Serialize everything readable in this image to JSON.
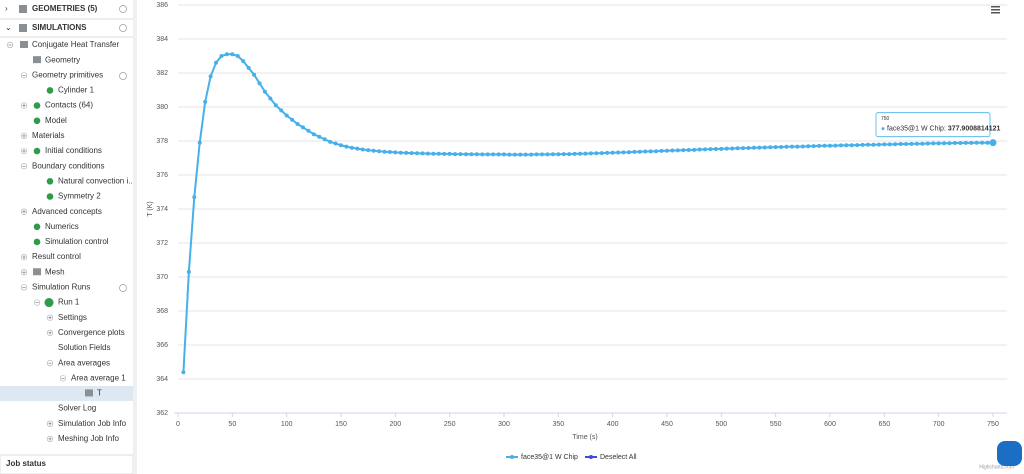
{
  "sidebar": {
    "sections": [
      "GEOMETRIES (5)",
      "SIMULATIONS"
    ],
    "tree": [
      "Conjugate Heat Transfer",
      "Geometry",
      "Geometry primitives",
      "Cylinder 1",
      "Contacts (64)",
      "Model",
      "Materials",
      "Initial conditions",
      "Boundary conditions",
      "Natural convection i...",
      "Symmetry 2",
      "Advanced concepts",
      "Numerics",
      "Simulation control",
      "Result control",
      "Mesh",
      "Simulation Runs",
      "Run 1",
      "Settings",
      "Convergence plots",
      "Solution Fields",
      "Area averages",
      "Area average 1",
      "T",
      "Solver Log",
      "Simulation Job Info",
      "Meshing Job Info"
    ],
    "footer": "Job status"
  },
  "chart_data": {
    "type": "line",
    "xlabel": "Time (s)",
    "ylabel": "T (K)",
    "x": [
      5,
      10,
      15,
      20,
      25,
      30,
      35,
      40,
      45,
      50,
      55,
      60,
      65,
      70,
      75,
      80,
      85,
      90,
      95,
      100,
      105,
      110,
      115,
      120,
      125,
      130,
      135,
      140,
      145,
      150,
      155,
      160,
      165,
      170,
      175,
      180,
      185,
      190,
      195,
      200,
      205,
      210,
      215,
      220,
      225,
      230,
      235,
      240,
      245,
      250,
      255,
      260,
      265,
      270,
      275,
      280,
      285,
      290,
      295,
      300,
      305,
      310,
      315,
      320,
      325,
      330,
      335,
      340,
      345,
      350,
      355,
      360,
      365,
      370,
      375,
      380,
      385,
      390,
      395,
      400,
      405,
      410,
      415,
      420,
      425,
      430,
      435,
      440,
      445,
      450,
      455,
      460,
      465,
      470,
      475,
      480,
      485,
      490,
      495,
      500,
      505,
      510,
      515,
      520,
      525,
      530,
      535,
      540,
      545,
      550,
      555,
      560,
      565,
      570,
      575,
      580,
      585,
      590,
      595,
      600,
      605,
      610,
      615,
      620,
      625,
      630,
      635,
      640,
      645,
      650,
      655,
      660,
      665,
      670,
      675,
      680,
      685,
      690,
      695,
      700,
      705,
      710,
      715,
      720,
      725,
      730,
      735,
      740,
      745,
      750
    ],
    "series": [
      {
        "name": "face35@1 W Chip",
        "color": "#47b0ea",
        "values": [
          364.4,
          370.3,
          374.7,
          377.9,
          380.3,
          381.8,
          382.6,
          383.0,
          383.1,
          383.1,
          383.0,
          382.7,
          382.3,
          381.9,
          381.4,
          380.9,
          380.5,
          380.1,
          379.8,
          379.5,
          379.25,
          379.0,
          378.8,
          378.6,
          378.4,
          378.25,
          378.1,
          377.95,
          377.85,
          377.75,
          377.67,
          377.6,
          377.55,
          377.5,
          377.46,
          377.43,
          377.4,
          377.37,
          377.35,
          377.33,
          377.31,
          377.3,
          377.29,
          377.28,
          377.27,
          377.26,
          377.25,
          377.25,
          377.24,
          377.24,
          377.23,
          377.23,
          377.22,
          377.22,
          377.22,
          377.21,
          377.21,
          377.21,
          377.21,
          377.21,
          377.2,
          377.2,
          377.2,
          377.2,
          377.2,
          377.21,
          377.21,
          377.21,
          377.22,
          377.22,
          377.23,
          377.23,
          377.24,
          377.25,
          377.26,
          377.27,
          377.28,
          377.29,
          377.3,
          377.31,
          377.32,
          377.33,
          377.34,
          377.36,
          377.37,
          377.38,
          377.39,
          377.4,
          377.42,
          377.43,
          377.44,
          377.45,
          377.46,
          377.47,
          377.48,
          377.5,
          377.51,
          377.52,
          377.53,
          377.54,
          377.55,
          377.56,
          377.57,
          377.58,
          377.59,
          377.6,
          377.61,
          377.62,
          377.63,
          377.64,
          377.65,
          377.66,
          377.67,
          377.67,
          377.68,
          377.69,
          377.7,
          377.71,
          377.72,
          377.72,
          377.73,
          377.74,
          377.75,
          377.75,
          377.76,
          377.77,
          377.78,
          377.78,
          377.79,
          377.8,
          377.8,
          377.81,
          377.82,
          377.82,
          377.83,
          377.84,
          377.84,
          377.85,
          377.86,
          377.86,
          377.87,
          377.87,
          377.88,
          377.88,
          377.89,
          377.89,
          377.9,
          377.9,
          377.9,
          377.9008814121
        ]
      }
    ],
    "xlim": [
      0,
      750
    ],
    "xticks": [
      0,
      50,
      100,
      150,
      200,
      250,
      300,
      350,
      400,
      450,
      500,
      550,
      600,
      650,
      700,
      750
    ],
    "ylim": [
      362,
      386
    ],
    "yticks": [
      362,
      364,
      366,
      368,
      370,
      372,
      374,
      376,
      378,
      380,
      382,
      384,
      386
    ],
    "grid": true,
    "legend_extra": "Deselect All",
    "credit": "Highcharts.com"
  }
}
